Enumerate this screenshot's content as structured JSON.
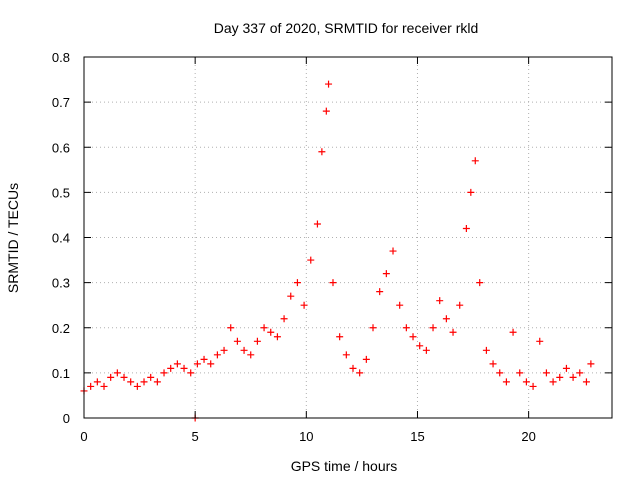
{
  "chart_data": {
    "type": "scatter",
    "title": "Day 337 of 2020, SRMTID for receiver rkld",
    "xlabel": "GPS time / hours",
    "ylabel": "SRMTID / TECUs",
    "xlim": [
      0,
      23.75
    ],
    "ylim": [
      0,
      0.8
    ],
    "xticks": [
      0,
      5,
      10,
      15,
      20
    ],
    "yticks": [
      0,
      0.1,
      0.2,
      0.3,
      0.4,
      0.5,
      0.6,
      0.7,
      0.8
    ],
    "xtick_labels": [
      "0",
      "5",
      "10",
      "15",
      "20"
    ],
    "ytick_labels": [
      "0",
      "0.1",
      "0.2",
      "0.3",
      "0.4",
      "0.5",
      "0.6",
      "0.7",
      "0.8"
    ],
    "grid": true,
    "marker": "+",
    "series": [
      {
        "name": "SRMTID",
        "color": "#ff0000",
        "x": [
          0.0,
          0.3,
          0.6,
          0.9,
          1.2,
          1.5,
          1.8,
          2.1,
          2.4,
          2.7,
          3.0,
          3.3,
          3.6,
          3.9,
          4.2,
          4.5,
          4.8,
          5.0,
          5.1,
          5.4,
          5.7,
          6.0,
          6.3,
          6.6,
          6.9,
          7.2,
          7.5,
          7.8,
          8.1,
          8.4,
          8.7,
          9.0,
          9.3,
          9.6,
          9.9,
          10.2,
          10.5,
          10.7,
          10.9,
          11.0,
          11.2,
          11.5,
          11.8,
          12.1,
          12.4,
          12.7,
          13.0,
          13.3,
          13.6,
          13.9,
          14.2,
          14.5,
          14.8,
          15.1,
          15.4,
          15.7,
          16.0,
          16.3,
          16.6,
          16.9,
          17.2,
          17.4,
          17.6,
          17.8,
          18.1,
          18.4,
          18.7,
          19.0,
          19.3,
          19.6,
          19.9,
          20.2,
          20.5,
          20.8,
          21.1,
          21.4,
          21.7,
          22.0,
          22.3,
          22.6,
          22.8
        ],
        "y": [
          0.06,
          0.07,
          0.08,
          0.07,
          0.09,
          0.1,
          0.09,
          0.08,
          0.07,
          0.08,
          0.09,
          0.08,
          0.1,
          0.11,
          0.12,
          0.11,
          0.1,
          0.0,
          0.12,
          0.13,
          0.12,
          0.14,
          0.15,
          0.2,
          0.17,
          0.15,
          0.14,
          0.17,
          0.2,
          0.19,
          0.18,
          0.22,
          0.27,
          0.3,
          0.25,
          0.35,
          0.43,
          0.59,
          0.68,
          0.74,
          0.3,
          0.18,
          0.14,
          0.11,
          0.1,
          0.13,
          0.2,
          0.28,
          0.32,
          0.37,
          0.25,
          0.2,
          0.18,
          0.16,
          0.15,
          0.2,
          0.26,
          0.22,
          0.19,
          0.25,
          0.42,
          0.5,
          0.57,
          0.3,
          0.15,
          0.12,
          0.1,
          0.08,
          0.19,
          0.1,
          0.08,
          0.07,
          0.17,
          0.1,
          0.08,
          0.09,
          0.11,
          0.09,
          0.1,
          0.08,
          0.12
        ]
      }
    ]
  }
}
